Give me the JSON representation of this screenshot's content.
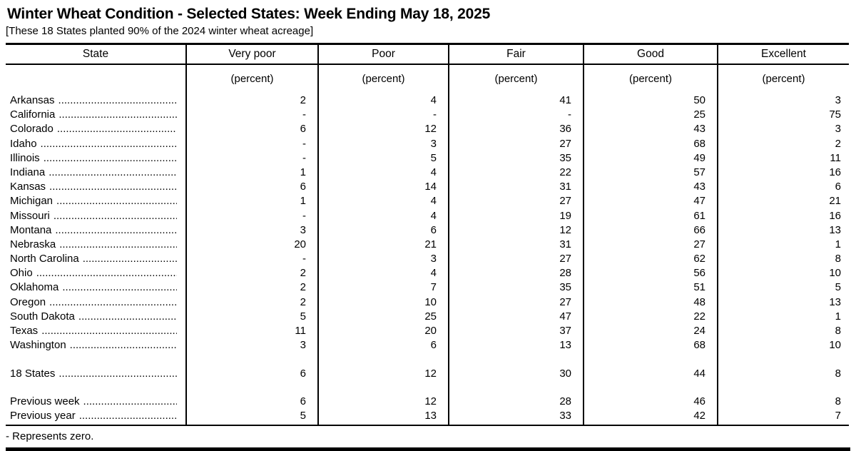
{
  "title": "Winter Wheat Condition - Selected States: Week Ending May 18, 2025",
  "subtitle": "[These 18 States planted 90% of the 2024 winter wheat acreage]",
  "footnote": "- Represents zero.",
  "colors": {
    "text": "#000000",
    "background": "#ffffff",
    "rule": "#000000"
  },
  "table": {
    "columns": [
      "State",
      "Very poor",
      "Poor",
      "Fair",
      "Good",
      "Excellent"
    ],
    "unit_label": "(percent)",
    "zero_symbol": "-",
    "rows": [
      {
        "state": "Arkansas",
        "values": [
          "2",
          "4",
          "41",
          "50",
          "3"
        ]
      },
      {
        "state": "California",
        "values": [
          "-",
          "-",
          "-",
          "25",
          "75"
        ]
      },
      {
        "state": "Colorado",
        "values": [
          "6",
          "12",
          "36",
          "43",
          "3"
        ]
      },
      {
        "state": "Idaho",
        "values": [
          "-",
          "3",
          "27",
          "68",
          "2"
        ]
      },
      {
        "state": "Illinois",
        "values": [
          "-",
          "5",
          "35",
          "49",
          "11"
        ]
      },
      {
        "state": "Indiana",
        "values": [
          "1",
          "4",
          "22",
          "57",
          "16"
        ]
      },
      {
        "state": "Kansas",
        "values": [
          "6",
          "14",
          "31",
          "43",
          "6"
        ]
      },
      {
        "state": "Michigan",
        "values": [
          "1",
          "4",
          "27",
          "47",
          "21"
        ]
      },
      {
        "state": "Missouri",
        "values": [
          "-",
          "4",
          "19",
          "61",
          "16"
        ]
      },
      {
        "state": "Montana",
        "values": [
          "3",
          "6",
          "12",
          "66",
          "13"
        ]
      },
      {
        "state": "Nebraska",
        "values": [
          "20",
          "21",
          "31",
          "27",
          "1"
        ]
      },
      {
        "state": "North Carolina",
        "values": [
          "-",
          "3",
          "27",
          "62",
          "8"
        ]
      },
      {
        "state": "Ohio",
        "values": [
          "2",
          "4",
          "28",
          "56",
          "10"
        ]
      },
      {
        "state": "Oklahoma",
        "values": [
          "2",
          "7",
          "35",
          "51",
          "5"
        ]
      },
      {
        "state": "Oregon",
        "values": [
          "2",
          "10",
          "27",
          "48",
          "13"
        ]
      },
      {
        "state": "South Dakota",
        "values": [
          "5",
          "25",
          "47",
          "22",
          "1"
        ]
      },
      {
        "state": "Texas",
        "values": [
          "11",
          "20",
          "37",
          "24",
          "8"
        ]
      },
      {
        "state": "Washington",
        "values": [
          "3",
          "6",
          "13",
          "68",
          "10"
        ]
      }
    ],
    "total": {
      "label": "18 States",
      "values": [
        "6",
        "12",
        "30",
        "44",
        "8"
      ]
    },
    "previous_week": {
      "label": "Previous week",
      "values": [
        "6",
        "12",
        "28",
        "46",
        "8"
      ]
    },
    "previous_year": {
      "label": "Previous year",
      "values": [
        "5",
        "13",
        "33",
        "42",
        "7"
      ]
    }
  }
}
